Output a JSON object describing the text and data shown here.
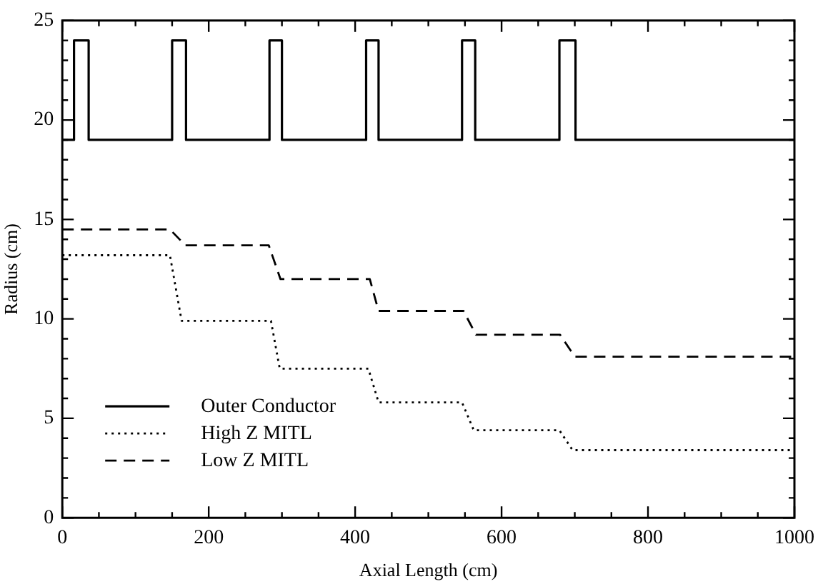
{
  "chart_data": {
    "type": "line",
    "xlabel": "Axial Length (cm)",
    "ylabel": "Radius (cm)",
    "xlim": [
      0,
      1000
    ],
    "ylim": [
      0,
      25
    ],
    "xticks": [
      0,
      {
        "value": 50,
        "label": null
      },
      {
        "value": 100,
        "label": null
      },
      {
        "value": 150,
        "label": null
      },
      200,
      {
        "value": 250,
        "label": null
      },
      {
        "value": 300,
        "label": null
      },
      {
        "value": 350,
        "label": null
      },
      400,
      {
        "value": 450,
        "label": null
      },
      {
        "value": 500,
        "label": null
      },
      {
        "value": 550,
        "label": null
      },
      600,
      {
        "value": 650,
        "label": null
      },
      {
        "value": 700,
        "label": null
      },
      {
        "value": 750,
        "label": null
      },
      800,
      {
        "value": 850,
        "label": null
      },
      {
        "value": 900,
        "label": null
      },
      {
        "value": 950,
        "label": null
      },
      1000
    ],
    "yticks": [
      0,
      {
        "value": 1,
        "label": null
      },
      {
        "value": 2,
        "label": null
      },
      {
        "value": 3,
        "label": null
      },
      {
        "value": 4,
        "label": null
      },
      5,
      {
        "value": 6,
        "label": null
      },
      {
        "value": 7,
        "label": null
      },
      {
        "value": 8,
        "label": null
      },
      {
        "value": 9,
        "label": null
      },
      10,
      {
        "value": 11,
        "label": null
      },
      {
        "value": 12,
        "label": null
      },
      {
        "value": 13,
        "label": null
      },
      {
        "value": 14,
        "label": null
      },
      15,
      {
        "value": 16,
        "label": null
      },
      {
        "value": 17,
        "label": null
      },
      {
        "value": 18,
        "label": null
      },
      {
        "value": 19,
        "label": null
      },
      20,
      {
        "value": 21,
        "label": null
      },
      {
        "value": 22,
        "label": null
      },
      {
        "value": 23,
        "label": null
      },
      {
        "value": 24,
        "label": null
      },
      25
    ],
    "grid": false,
    "legend": "bottom left",
    "marker": "none",
    "series": [
      {
        "name": "Outer Conductor",
        "color": "#000000",
        "line_style": "solid",
        "x": [
          0,
          16,
          16,
          36,
          36,
          150,
          150,
          169,
          169,
          283,
          283,
          300,
          300,
          415,
          415,
          432,
          432,
          546,
          546,
          564,
          564,
          679,
          679,
          701,
          701,
          1000
        ],
        "values": [
          19,
          19,
          24,
          24,
          19,
          19,
          24,
          24,
          19,
          19,
          24,
          24,
          19,
          19,
          24,
          24,
          19,
          19,
          24,
          24,
          19,
          19,
          24,
          24,
          19,
          19
        ]
      },
      {
        "name": "High Z MITL",
        "color": "#000000",
        "line_style": "dotted",
        "x": [
          0,
          147,
          163,
          285,
          297,
          418,
          432,
          546,
          562,
          679,
          697,
          1000
        ],
        "values": [
          13.2,
          13.2,
          9.9,
          9.9,
          7.5,
          7.5,
          5.8,
          5.8,
          4.4,
          4.4,
          3.4,
          3.4
        ]
      },
      {
        "name": "Low Z MITL",
        "color": "#000000",
        "line_style": "dashed",
        "x": [
          0,
          147,
          168,
          282,
          298,
          420,
          432,
          548,
          565,
          680,
          700,
          1000
        ],
        "values": [
          14.5,
          14.5,
          13.7,
          13.7,
          12,
          12,
          10.4,
          10.4,
          9.2,
          9.2,
          8.1,
          8.1
        ]
      }
    ]
  }
}
